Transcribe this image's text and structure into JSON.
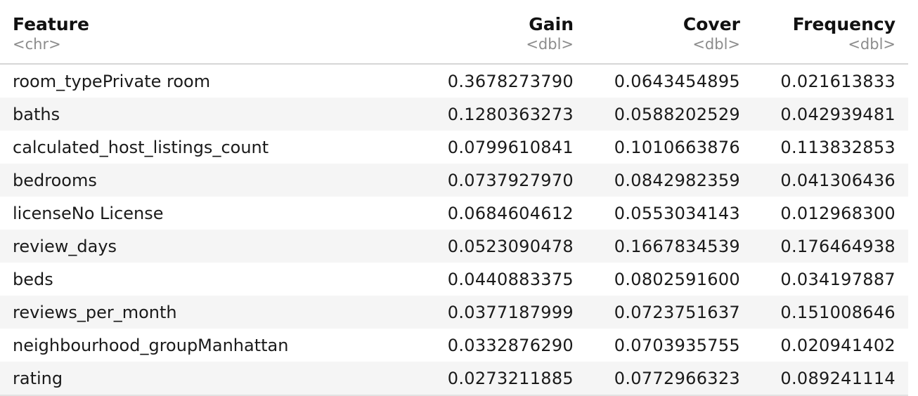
{
  "table": {
    "columns": [
      {
        "name": "Feature",
        "type": "<chr>"
      },
      {
        "name": "Gain",
        "type": "<dbl>"
      },
      {
        "name": "Cover",
        "type": "<dbl>"
      },
      {
        "name": "Frequency",
        "type": "<dbl>"
      }
    ],
    "rows": [
      {
        "feature": "room_typePrivate room",
        "gain": "0.3678273790",
        "cover": "0.0643454895",
        "frequency": "0.021613833"
      },
      {
        "feature": "baths",
        "gain": "0.1280363273",
        "cover": "0.0588202529",
        "frequency": "0.042939481"
      },
      {
        "feature": "calculated_host_listings_count",
        "gain": "0.0799610841",
        "cover": "0.1010663876",
        "frequency": "0.113832853"
      },
      {
        "feature": "bedrooms",
        "gain": "0.0737927970",
        "cover": "0.0842982359",
        "frequency": "0.041306436"
      },
      {
        "feature": "licenseNo License",
        "gain": "0.0684604612",
        "cover": "0.0553034143",
        "frequency": "0.012968300"
      },
      {
        "feature": "review_days",
        "gain": "0.0523090478",
        "cover": "0.1667834539",
        "frequency": "0.176464938"
      },
      {
        "feature": "beds",
        "gain": "0.0440883375",
        "cover": "0.0802591600",
        "frequency": "0.034197887"
      },
      {
        "feature": "reviews_per_month",
        "gain": "0.0377187999",
        "cover": "0.0723751637",
        "frequency": "0.151008646"
      },
      {
        "feature": "neighbourhood_groupManhattan",
        "gain": "0.0332876290",
        "cover": "0.0703935755",
        "frequency": "0.020941402"
      },
      {
        "feature": "rating",
        "gain": "0.0273211885",
        "cover": "0.0772966323",
        "frequency": "0.089241114"
      }
    ]
  }
}
